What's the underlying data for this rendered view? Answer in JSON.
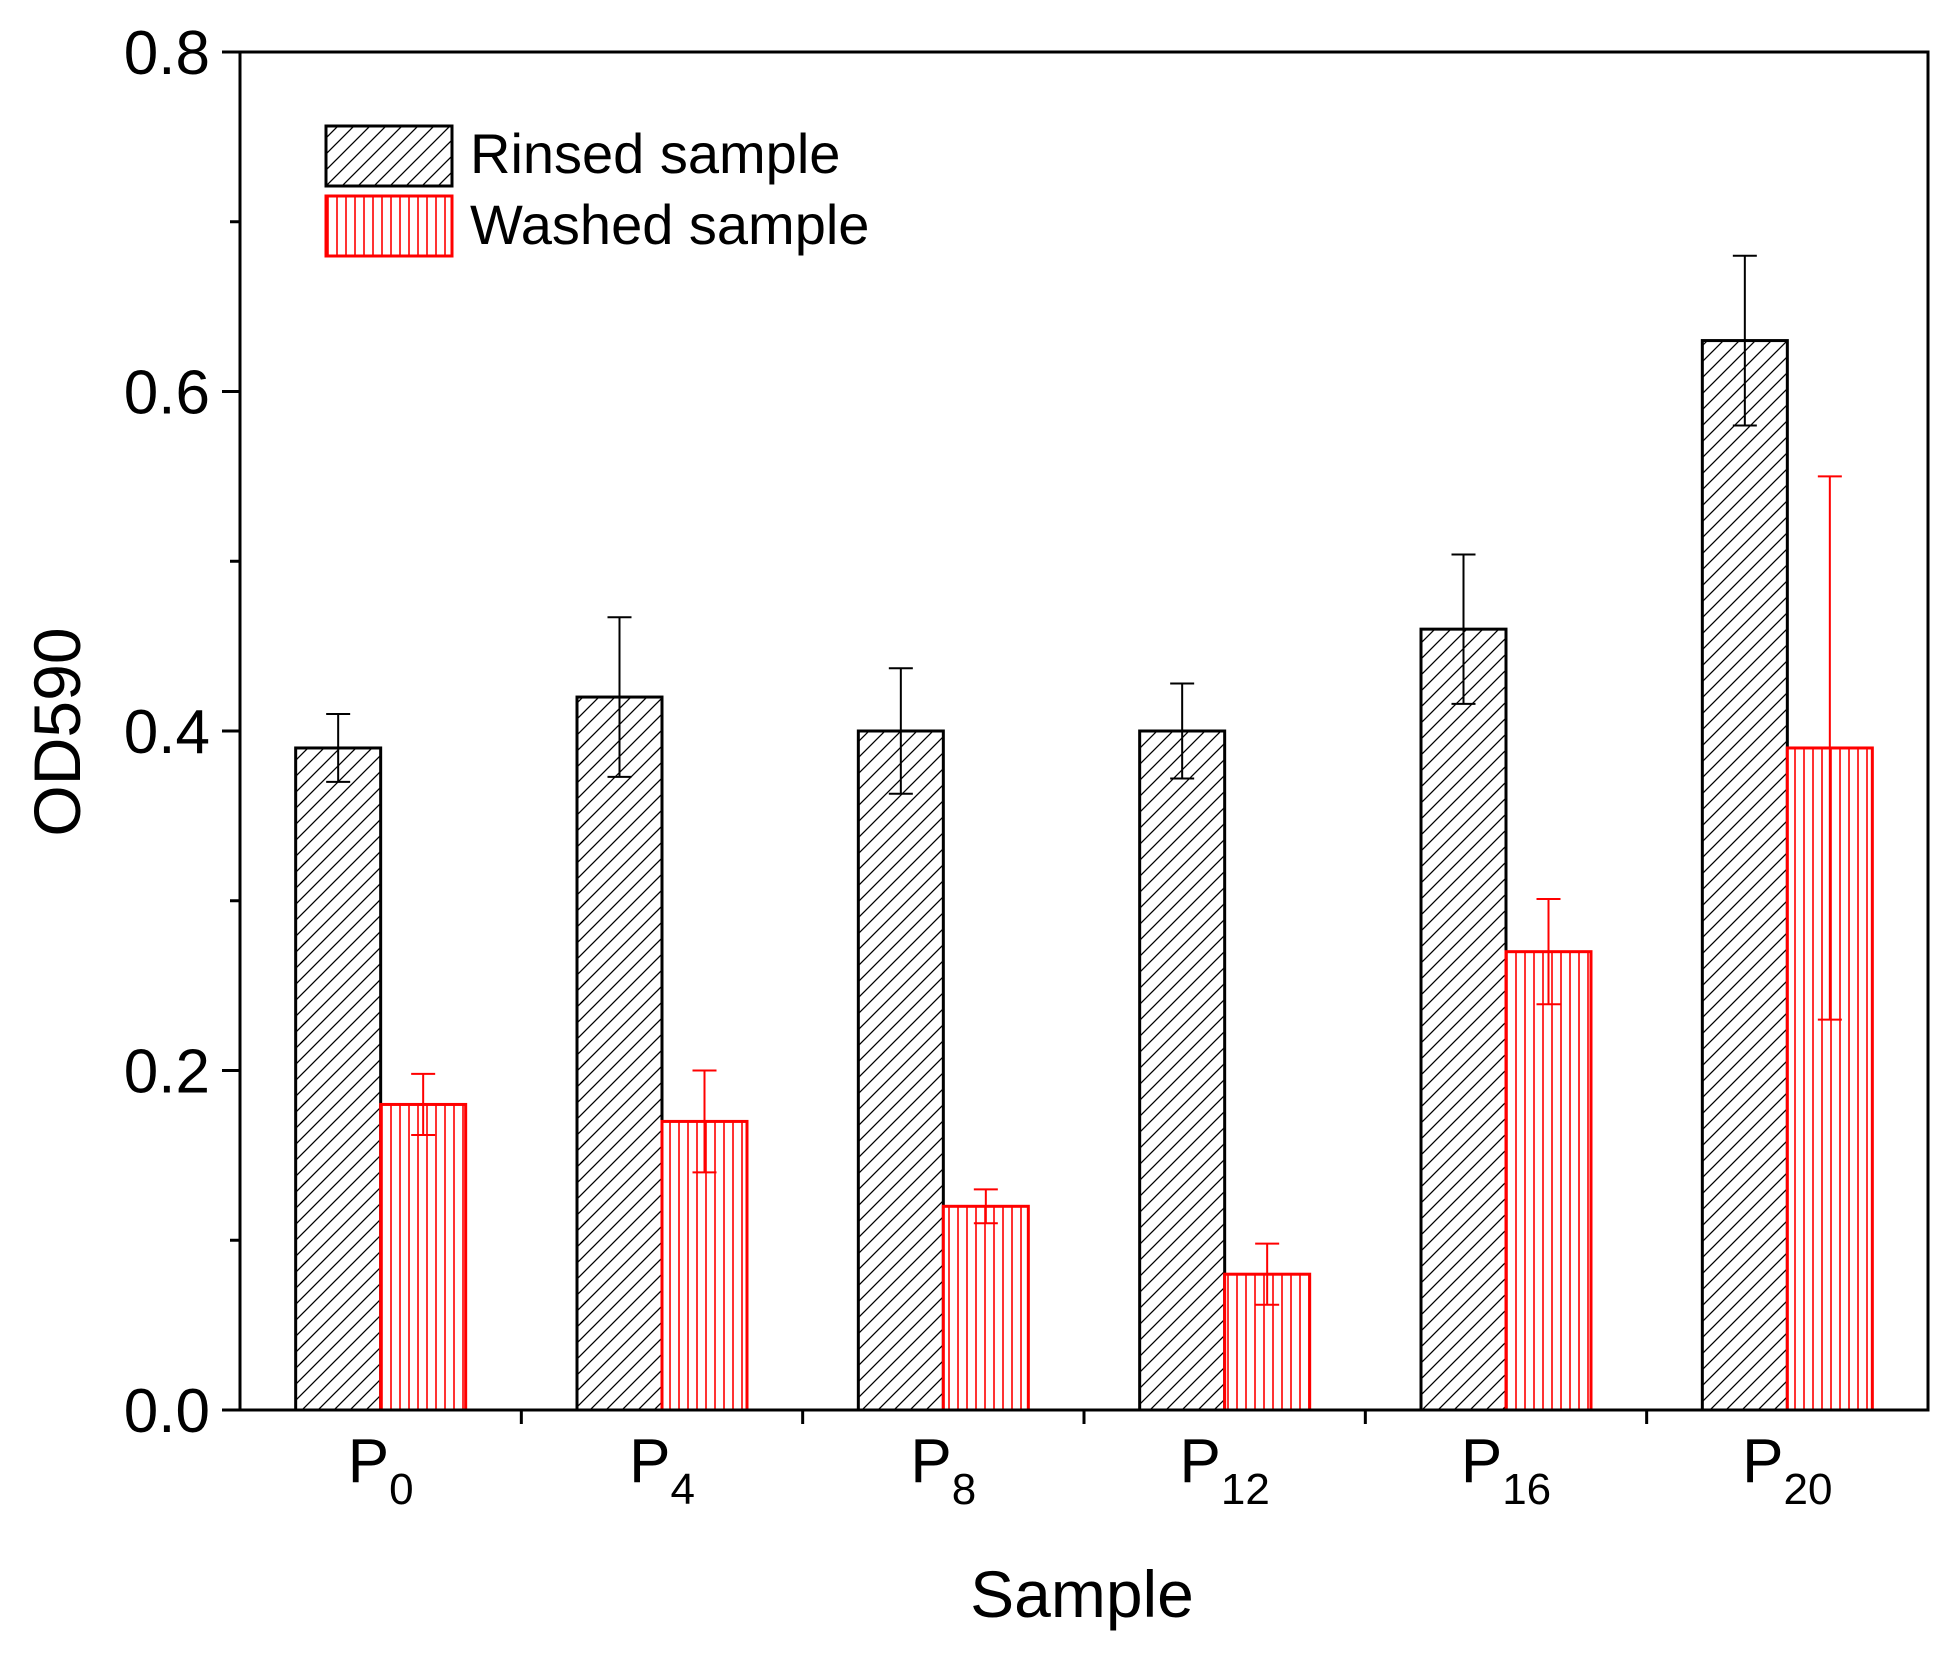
{
  "chart_data": {
    "type": "bar",
    "title": "",
    "xlabel": "Sample",
    "ylabel": "OD590",
    "ylim": [
      0,
      0.8
    ],
    "yticks": [
      "0.0",
      "0.2",
      "0.4",
      "0.6",
      "0.8"
    ],
    "ytick_values": [
      0,
      0.2,
      0.4,
      0.6,
      0.8
    ],
    "categories": [
      {
        "base": "P",
        "sub": "0"
      },
      {
        "base": "P",
        "sub": "4"
      },
      {
        "base": "P",
        "sub": "8"
      },
      {
        "base": "P",
        "sub": "12"
      },
      {
        "base": "P",
        "sub": "16"
      },
      {
        "base": "P",
        "sub": "20"
      }
    ],
    "legend_position": "top-left",
    "series": [
      {
        "name": "Rinsed sample",
        "color": "#000000",
        "pattern": "diagonal-hatch",
        "values": [
          0.39,
          0.42,
          0.4,
          0.4,
          0.46,
          0.63
        ],
        "errors": [
          0.02,
          0.047,
          0.037,
          0.028,
          0.044,
          0.05
        ]
      },
      {
        "name": "Washed sample",
        "color": "#ff0000",
        "pattern": "vertical-lines",
        "values": [
          0.18,
          0.17,
          0.12,
          0.08,
          0.27,
          0.39
        ],
        "errors": [
          0.018,
          0.03,
          0.01,
          0.018,
          0.031,
          0.16
        ]
      }
    ]
  }
}
